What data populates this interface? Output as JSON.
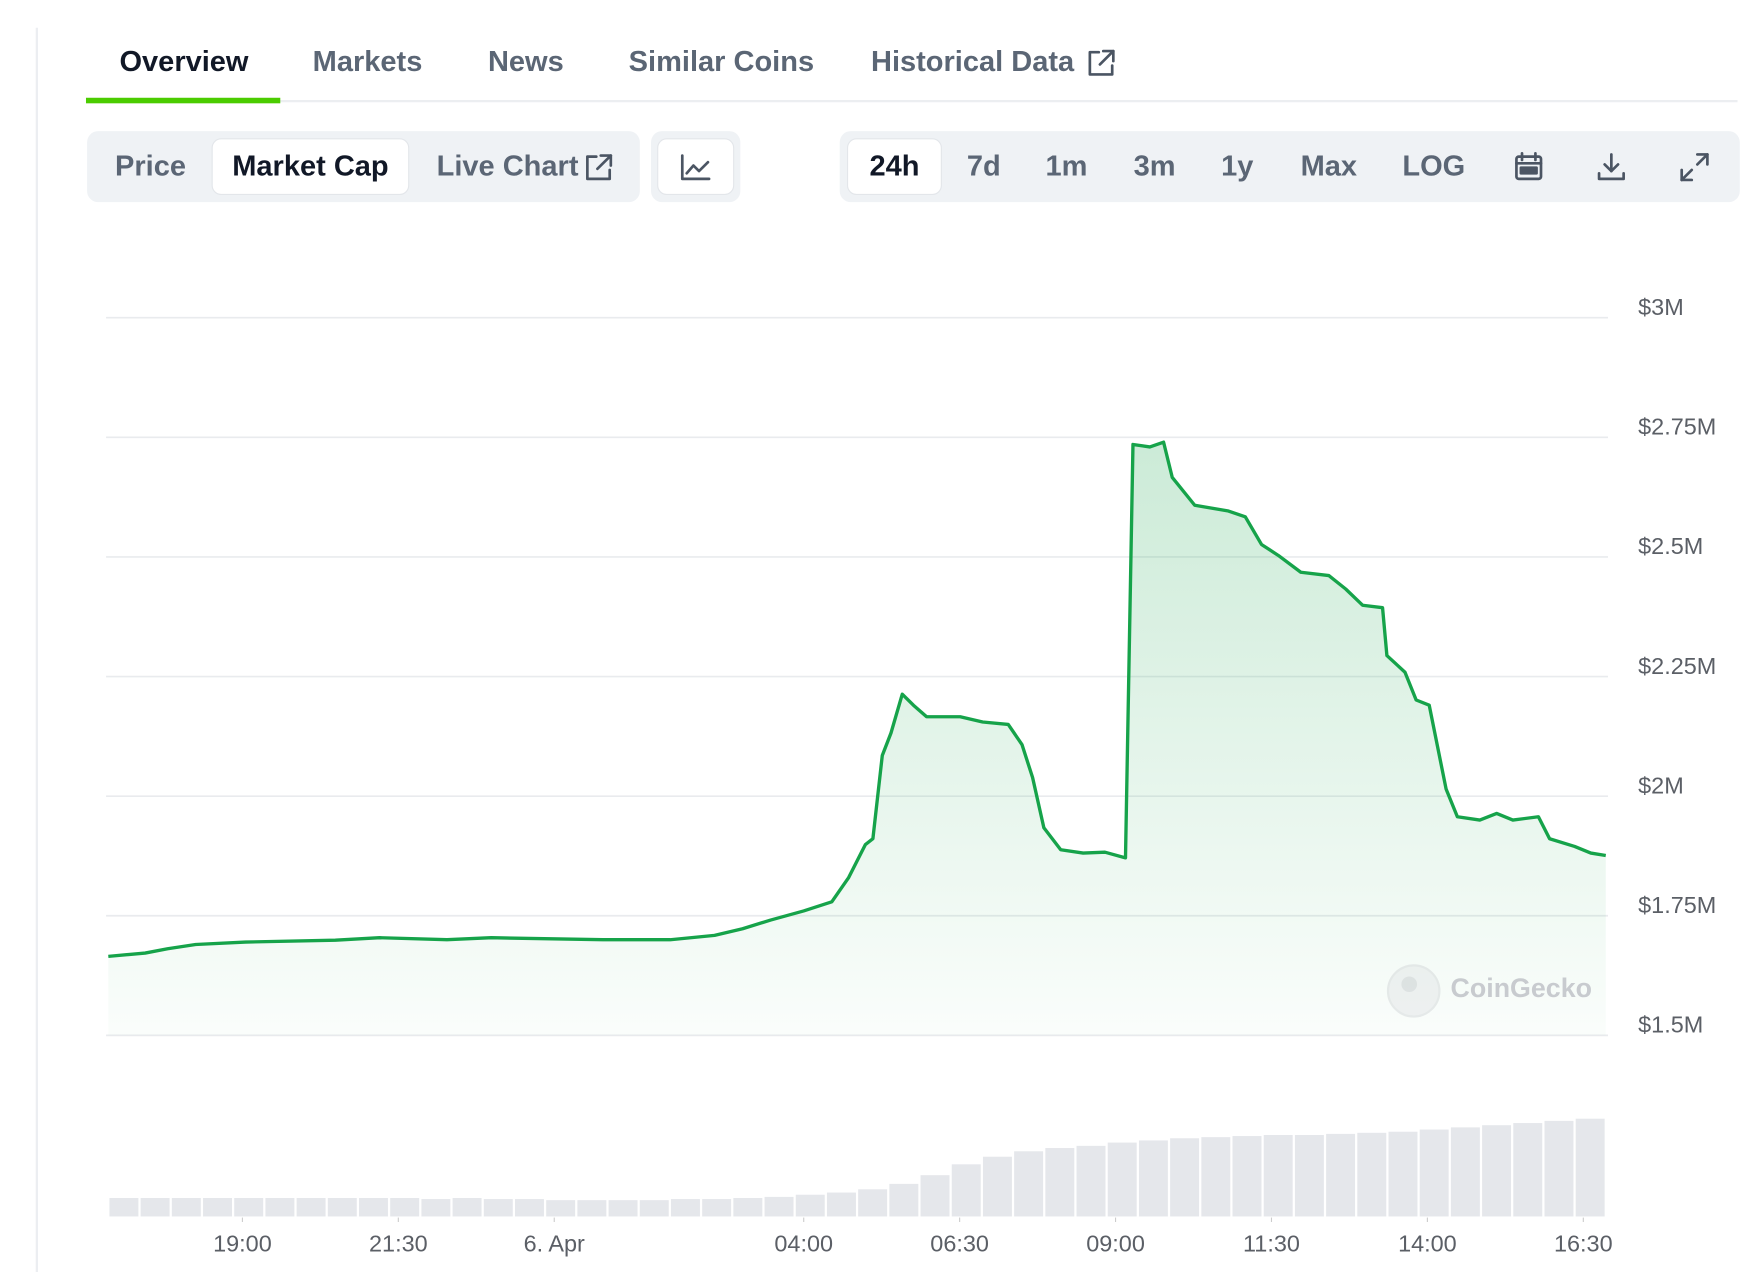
{
  "tabs": [
    "Overview",
    "Markets",
    "News",
    "Similar Coins",
    "Historical Data"
  ],
  "chart_controls": {
    "data_types": [
      "Price",
      "Market Cap",
      "Live Chart"
    ],
    "ranges": [
      "24h",
      "7d",
      "1m",
      "3m",
      "1y",
      "Max",
      "LOG"
    ]
  },
  "watermark": "CoinGecko",
  "chart_data": {
    "type": "area",
    "color": "#16a34a",
    "grid": true,
    "x": [
      -7.15,
      -6.56,
      -6.2,
      -5.75,
      -4.95,
      -3.51,
      -2.8,
      -1.72,
      -1.01,
      0.78,
      1.86,
      2.57,
      3.02,
      3.47,
      4.0,
      4.45,
      4.72,
      4.99,
      5.11,
      5.26,
      5.4,
      5.58,
      5.76,
      5.97,
      6.51,
      6.87,
      7.28,
      7.5,
      7.67,
      7.85,
      8.12,
      8.48,
      8.83,
      9.16,
      9.28,
      9.55,
      9.77,
      9.91,
      10.27,
      10.81,
      11.08,
      11.34,
      11.61,
      11.97,
      12.42,
      12.69,
      12.96,
      13.28,
      13.35,
      13.64,
      13.82,
      14.03,
      14.3,
      14.48,
      14.84,
      15.11,
      15.37,
      15.78,
      15.96,
      16.36,
      16.62,
      16.86
    ],
    "values": [
      1665000,
      1672000,
      1681000,
      1690000,
      1695000,
      1699000,
      1704000,
      1700000,
      1704000,
      1700000,
      1700000,
      1709000,
      1723000,
      1741000,
      1760000,
      1779000,
      1830000,
      1899000,
      1911000,
      2085000,
      2132000,
      2213000,
      2190000,
      2166000,
      2166000,
      2155000,
      2150000,
      2108000,
      2039000,
      1934000,
      1888000,
      1881000,
      1883000,
      1871000,
      2735000,
      2730000,
      2740000,
      2666000,
      2608000,
      2596000,
      2584000,
      2526000,
      2503000,
      2468000,
      2461000,
      2433000,
      2399000,
      2394000,
      2294000,
      2259000,
      2201000,
      2190000,
      2015000,
      1957000,
      1950000,
      1964000,
      1950000,
      1957000,
      1911000,
      1895000,
      1881000,
      1876000
    ],
    "xlim": [
      -7.15,
      16.86
    ],
    "xticks": [
      {
        "value": -5,
        "label": "19:00"
      },
      {
        "value": -2.5,
        "label": "21:30"
      },
      {
        "value": 0,
        "label": "6. Apr"
      },
      {
        "value": 4,
        "label": "04:00"
      },
      {
        "value": 6.5,
        "label": "06:30"
      },
      {
        "value": 9,
        "label": "09:00"
      },
      {
        "value": 11.5,
        "label": "11:30"
      },
      {
        "value": 14,
        "label": "14:00"
      },
      {
        "value": 16.5,
        "label": "16:30"
      }
    ],
    "ylim": [
      1500000,
      3000000
    ],
    "yticks": [
      {
        "value": 1500000,
        "label": "$1.5M"
      },
      {
        "value": 1750000,
        "label": "$1.75M"
      },
      {
        "value": 2000000,
        "label": "$2M"
      },
      {
        "value": 2250000,
        "label": "$2.25M"
      },
      {
        "value": 2500000,
        "label": "$2.5M"
      },
      {
        "value": 2750000,
        "label": "$2.75M"
      },
      {
        "value": 3000000,
        "label": "$3M"
      }
    ],
    "volume": {
      "color": "#e5e7eb",
      "values": [
        17,
        17,
        17,
        17,
        17,
        17,
        17,
        17,
        17,
        17,
        16,
        17,
        16,
        16,
        15,
        15,
        15,
        15,
        16,
        16,
        17,
        18,
        20,
        22,
        25,
        30,
        38,
        48,
        55,
        60,
        63,
        65,
        68,
        70,
        72,
        73,
        74,
        75,
        75,
        76,
        77,
        78,
        80,
        82,
        84,
        86,
        88,
        90
      ]
    }
  }
}
